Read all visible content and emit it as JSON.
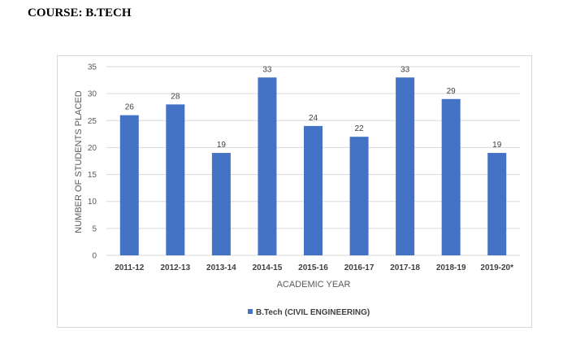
{
  "heading": "COURSE: B.TECH",
  "chart_data": {
    "type": "bar",
    "categories": [
      "2011-12",
      "2012-13",
      "2013-14",
      "2014-15",
      "2015-16",
      "2016-17",
      "2017-18",
      "2018-19",
      "2019-20*"
    ],
    "series": [
      {
        "name": "B.Tech (CIVIL ENGINEERING)",
        "values": [
          26,
          28,
          19,
          33,
          24,
          22,
          33,
          29,
          19
        ]
      }
    ],
    "title": "",
    "xlabel": "ACADEMIC YEAR",
    "ylabel": "NUMBER OF STUDENTS PLACED",
    "ylim": [
      0,
      35
    ],
    "yticks": [
      0,
      5,
      10,
      15,
      20,
      25,
      30,
      35
    ],
    "grid": true,
    "legend_position": "bottom",
    "bar_color": "#4472c4",
    "grid_color": "#d9d9d9"
  }
}
